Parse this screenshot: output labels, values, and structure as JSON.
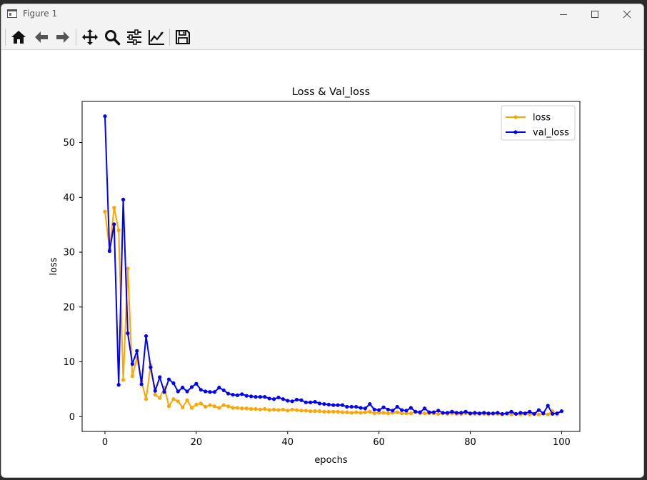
{
  "window": {
    "title": "Figure 1"
  },
  "toolbar": {
    "buttons": [
      {
        "icon": "home-icon"
      },
      {
        "icon": "back-arrow-icon"
      },
      {
        "icon": "forward-arrow-icon"
      },
      {
        "icon": "pan-icon"
      },
      {
        "icon": "zoom-icon"
      },
      {
        "icon": "configure-subplots-icon"
      },
      {
        "icon": "edit-axis-icon"
      },
      {
        "icon": "save-icon"
      }
    ]
  },
  "chart_data": {
    "type": "line",
    "title": "Loss & Val_loss",
    "xlabel": "epochs",
    "ylabel": "loss",
    "xlim": [
      -5,
      104
    ],
    "ylim": [
      -2.7,
      57.5
    ],
    "xticks": [
      0,
      20,
      40,
      60,
      80,
      100
    ],
    "yticks": [
      0,
      10,
      20,
      30,
      40,
      50
    ],
    "grid": false,
    "legend_position": "top-right",
    "series": [
      {
        "name": "loss",
        "color": "#FFA500",
        "marker": "circle",
        "values": [
          37.4,
          30.5,
          38.1,
          34.0,
          6.7,
          27.0,
          7.4,
          10.7,
          6.4,
          3.2,
          9.4,
          4.0,
          3.4,
          5.3,
          1.9,
          3.2,
          2.8,
          1.7,
          3.0,
          1.6,
          2.2,
          2.4,
          1.8,
          2.1,
          1.9,
          1.6,
          2.1,
          1.9,
          1.6,
          1.6,
          1.5,
          1.5,
          1.4,
          1.4,
          1.3,
          1.4,
          1.2,
          1.3,
          1.2,
          1.3,
          1.1,
          1.3,
          1.2,
          1.1,
          1.1,
          1.0,
          1.0,
          1.0,
          0.9,
          0.9,
          0.9,
          0.9,
          0.8,
          0.8,
          0.7,
          0.8,
          0.7,
          0.8,
          0.9,
          0.6,
          0.7,
          0.7,
          0.6,
          0.7,
          0.8,
          0.6,
          0.6,
          0.6,
          0.9,
          0.6,
          0.6,
          0.6,
          0.6,
          0.5,
          0.6,
          0.5,
          0.6,
          0.5,
          0.5,
          0.6,
          0.5,
          0.5,
          0.5,
          0.5,
          0.4,
          0.5,
          0.5,
          0.4,
          0.5,
          0.4,
          0.5,
          0.4,
          0.5,
          0.4,
          0.5,
          0.4,
          0.5,
          0.4,
          1.0,
          0.4
        ]
      },
      {
        "name": "val_loss",
        "color": "#0000FF",
        "marker": "circle",
        "values": [
          54.8,
          30.2,
          35.1,
          5.8,
          39.6,
          15.2,
          9.6,
          12.0,
          5.9,
          14.7,
          9.0,
          4.7,
          7.2,
          4.5,
          6.8,
          6.1,
          4.6,
          5.3,
          4.6,
          5.4,
          6.0,
          4.9,
          4.6,
          4.5,
          4.5,
          5.3,
          4.8,
          4.2,
          4.0,
          3.9,
          4.1,
          3.8,
          3.7,
          3.6,
          3.6,
          3.6,
          3.3,
          3.2,
          3.5,
          3.2,
          2.9,
          2.8,
          3.1,
          3.0,
          2.6,
          2.6,
          2.7,
          2.4,
          2.3,
          2.2,
          2.1,
          2.1,
          2.1,
          1.8,
          1.8,
          1.8,
          1.6,
          1.5,
          2.3,
          1.3,
          1.2,
          1.7,
          1.3,
          1.1,
          1.8,
          1.2,
          1.1,
          1.6,
          0.9,
          0.8,
          1.5,
          0.8,
          0.8,
          1.1,
          0.7,
          0.7,
          0.9,
          0.7,
          0.7,
          0.9,
          0.6,
          0.7,
          0.6,
          0.7,
          0.6,
          0.6,
          0.7,
          0.5,
          0.6,
          0.9,
          0.5,
          0.7,
          0.6,
          0.9,
          0.5,
          1.2,
          0.6,
          2.0,
          0.5,
          0.6,
          1.0
        ]
      }
    ]
  }
}
